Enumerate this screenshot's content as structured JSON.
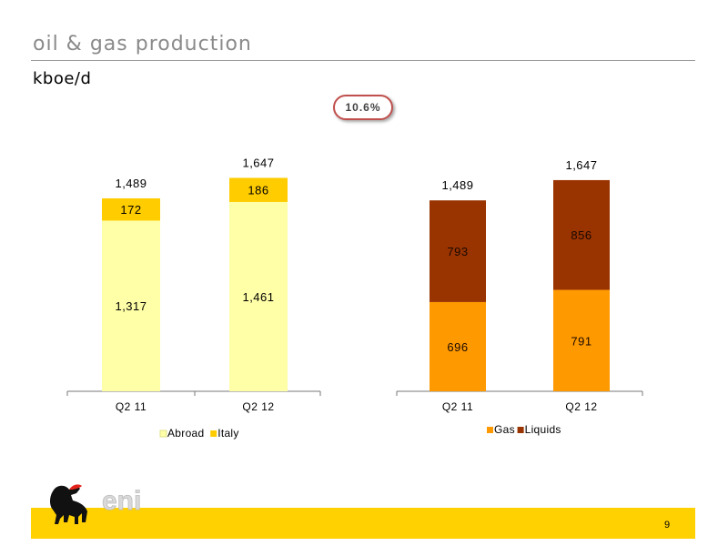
{
  "header": {
    "title": "oil & gas production",
    "subtitle": "kboe/d"
  },
  "badge": {
    "label": "10.6%"
  },
  "footer": {
    "page_number": "9"
  },
  "logo": {
    "wordmark": "eni"
  },
  "chart_data": [
    {
      "type": "bar",
      "stacked": true,
      "categories": [
        "Q2 11",
        "Q2 12"
      ],
      "series": [
        {
          "name": "Abroad",
          "values": [
            1317,
            1461
          ],
          "color": "#ffffa8"
        },
        {
          "name": "Italy",
          "values": [
            172,
            186
          ],
          "color": "#ffcc00"
        }
      ],
      "totals": [
        "1,489",
        "1,647"
      ],
      "value_labels": [
        [
          "1,317",
          "1,461"
        ],
        [
          "172",
          "186"
        ]
      ],
      "legend": "bottom"
    },
    {
      "type": "bar",
      "stacked": true,
      "categories": [
        "Q2 11",
        "Q2 12"
      ],
      "series": [
        {
          "name": "Gas",
          "values": [
            696,
            791
          ],
          "color": "#ff9900"
        },
        {
          "name": "Liquids",
          "values": [
            793,
            856
          ],
          "color": "#993300"
        }
      ],
      "totals": [
        "1,489",
        "1,647"
      ],
      "value_labels": [
        [
          "696",
          "791"
        ],
        [
          "793",
          "856"
        ]
      ],
      "legend": "bottom"
    }
  ]
}
